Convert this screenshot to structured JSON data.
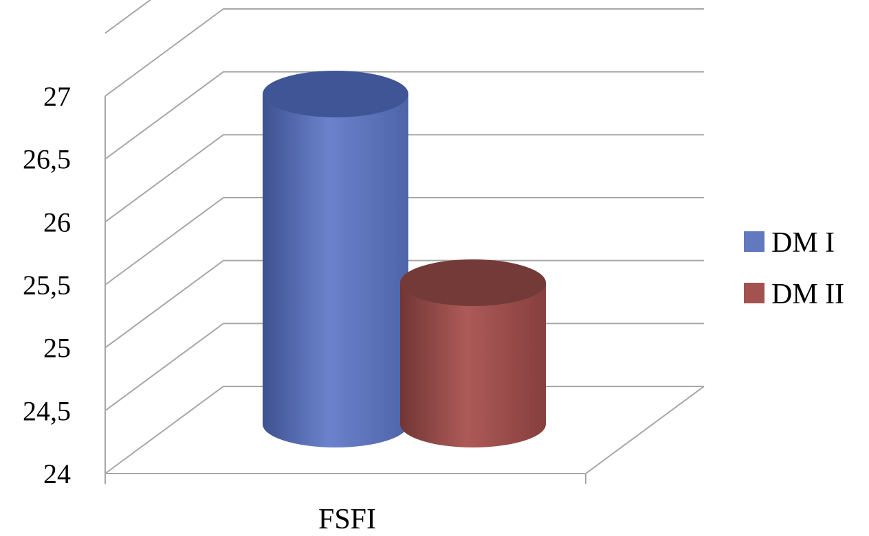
{
  "chart_data": {
    "type": "bar",
    "categories": [
      "FSFI"
    ],
    "series": [
      {
        "name": "DM I",
        "values": [
          26.7
        ],
        "color": "#6279c0"
      },
      {
        "name": "DM II",
        "values": [
          25.2
        ],
        "color": "#a35250"
      }
    ],
    "ylim": [
      24,
      27
    ],
    "yticks": [
      "24",
      "24,5",
      "25",
      "25,5",
      "26",
      "26,5",
      "27"
    ],
    "grid": true,
    "legend_position": "right",
    "bar_shape": "cylinder"
  }
}
